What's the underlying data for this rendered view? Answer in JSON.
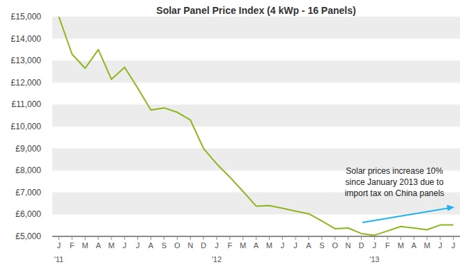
{
  "chart_data": {
    "type": "line",
    "title": "Solar Panel Price Index (4 kWp - 16 Panels)",
    "categories": [
      "J",
      "F",
      "M",
      "A",
      "M",
      "J",
      "J",
      "A",
      "S",
      "O",
      "N",
      "D",
      "J",
      "F",
      "M",
      "A",
      "M",
      "J",
      "J",
      "A",
      "S",
      "O",
      "N",
      "D",
      "J",
      "F",
      "M",
      "A",
      "M",
      "J",
      "J"
    ],
    "year_labels": [
      "'11",
      null,
      null,
      null,
      null,
      null,
      null,
      null,
      null,
      null,
      null,
      null,
      "'12",
      null,
      null,
      null,
      null,
      null,
      null,
      null,
      null,
      null,
      null,
      null,
      "'13",
      null,
      null,
      null,
      null,
      null,
      null
    ],
    "values": [
      15000,
      13300,
      12650,
      13500,
      12150,
      12700,
      11750,
      10750,
      10850,
      10650,
      10300,
      9000,
      8300,
      7700,
      7050,
      6380,
      6400,
      6280,
      6150,
      6030,
      5700,
      5350,
      5380,
      5130,
      5050,
      5250,
      5450,
      5380,
      5300,
      5520,
      5520
    ],
    "color": "#8db51e",
    "ylim": [
      5000,
      15000
    ],
    "yticks": [
      {
        "value": 5000,
        "label": "£5,000"
      },
      {
        "value": 6000,
        "label": "£6,000"
      },
      {
        "value": 7000,
        "label": "£7,000"
      },
      {
        "value": 8000,
        "label": "£8,000"
      },
      {
        "value": 9000,
        "label": "£9,000"
      },
      {
        "value": 10000,
        "label": "£10,000"
      },
      {
        "value": 11000,
        "label": "£11,000"
      },
      {
        "value": 12000,
        "label": "£12,000"
      },
      {
        "value": 13000,
        "label": "£13,000"
      },
      {
        "value": 14000,
        "label": "£14,000"
      },
      {
        "value": 15000,
        "label": "£15,000"
      }
    ],
    "grid": true,
    "annotation": [
      "Solar prices increase 10%",
      "since January 2013 due to",
      "import tax on China panels"
    ]
  }
}
